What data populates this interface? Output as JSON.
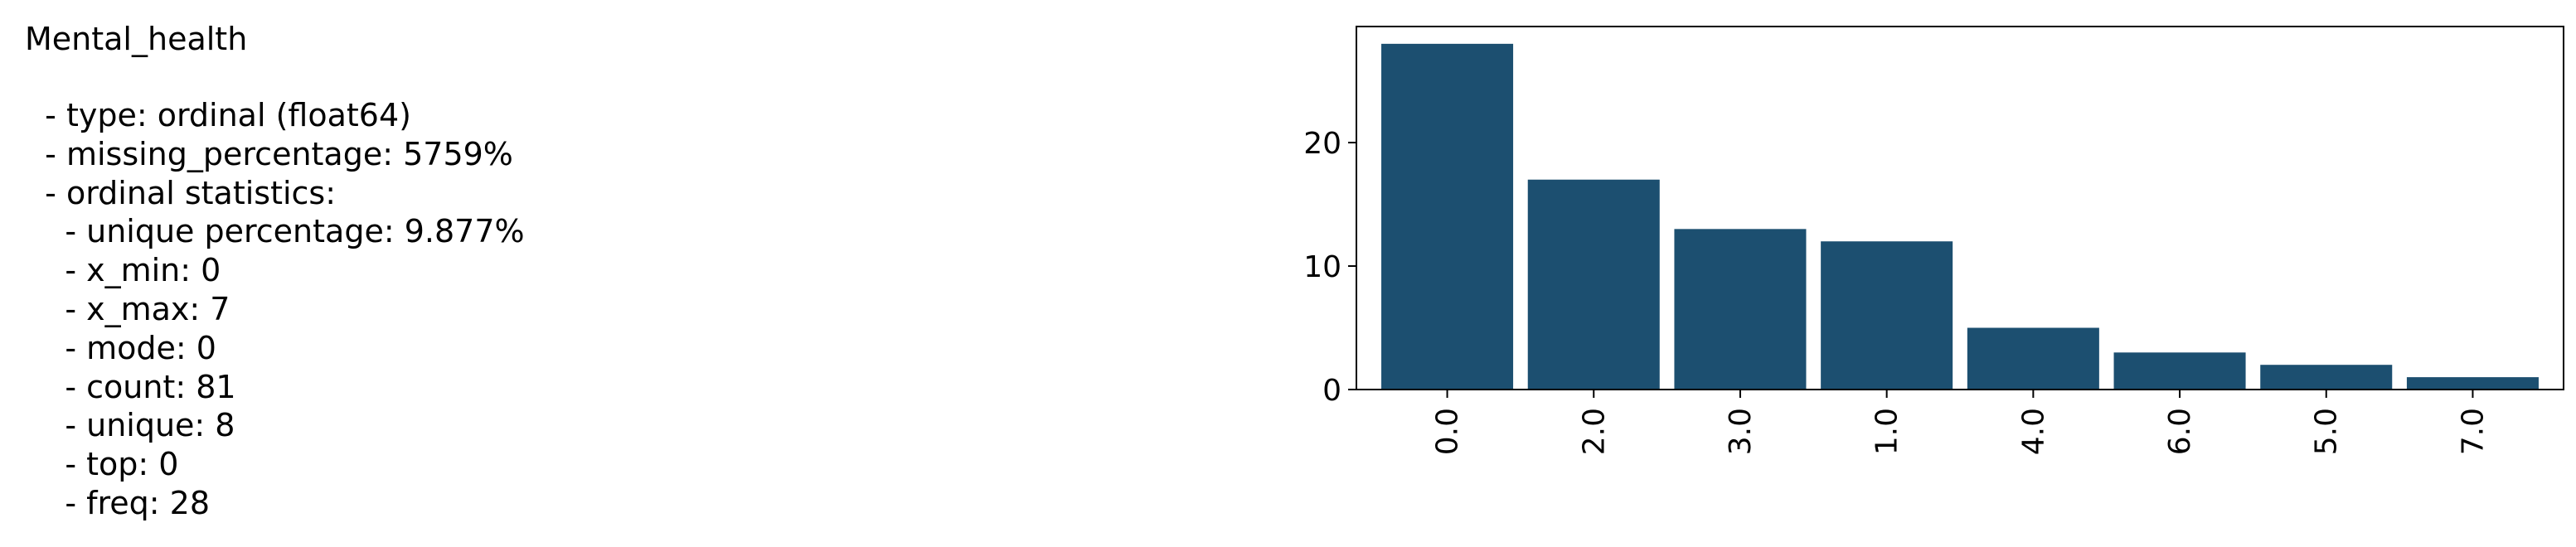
{
  "stats": {
    "title": "Mental_health",
    "lines": [
      "  - type: ordinal (float64)",
      "  - missing_percentage: 5759%",
      "  - ordinal statistics:",
      "    - unique percentage: 9.877%",
      "    - x_min: 0",
      "    - x_max: 7",
      "    - mode: 0",
      "    - count: 81",
      "    - unique: 8",
      "    - top: 0",
      "    - freq: 28"
    ]
  },
  "chart_data": {
    "type": "bar",
    "categories": [
      "0.0",
      "2.0",
      "3.0",
      "1.0",
      "4.0",
      "6.0",
      "5.0",
      "7.0"
    ],
    "values": [
      28,
      17,
      13,
      12,
      5,
      3,
      2,
      1
    ],
    "ylim": [
      0,
      29.4
    ],
    "yticks": [
      0,
      10,
      20
    ],
    "bar_color": "#1c4f70",
    "xtick_rotation": "vertical",
    "grid": false
  }
}
